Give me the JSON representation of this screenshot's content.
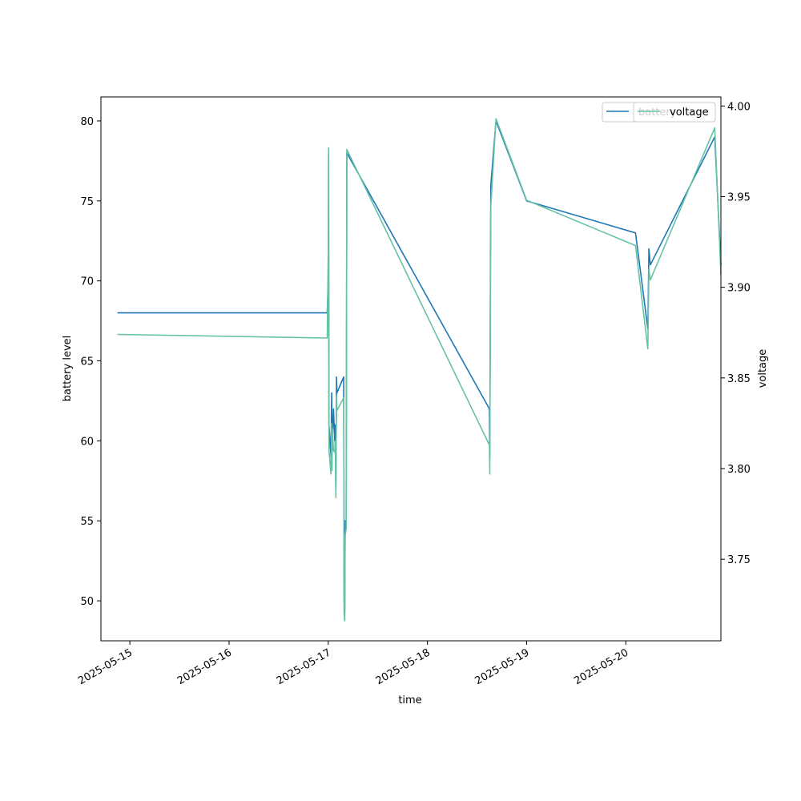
{
  "chart_data": {
    "type": "line",
    "xlabel": "time",
    "ylabel_left": "battery level",
    "ylabel_right": "voltage",
    "x_tick_labels": [
      "2025-05-15",
      "2025-05-16",
      "2025-05-17",
      "2025-05-18",
      "2025-05-19",
      "2025-05-20"
    ],
    "y_left_ticks": [
      50,
      55,
      60,
      65,
      70,
      75,
      80
    ],
    "y_left_lim": [
      47.5,
      81.5
    ],
    "y_right_ticks": [
      3.75,
      3.8,
      3.85,
      3.9,
      3.95,
      4.0
    ],
    "y_right_lim": [
      3.705,
      4.005
    ],
    "x_lim": [
      "2025-05-14T17:00",
      "2025-05-20T23:00"
    ],
    "legend": {
      "placement": "top-right",
      "entries": [
        "battery",
        "voltage"
      ]
    },
    "grid": false,
    "series": [
      {
        "name": "battery",
        "axis": "left",
        "color": "#1f77b4",
        "points": [
          [
            "2025-05-14T21:00",
            68
          ],
          [
            "2025-05-16T23:45",
            68
          ],
          [
            "2025-05-17T00:00",
            70
          ],
          [
            "2025-05-17T00:05",
            78
          ],
          [
            "2025-05-17T00:10",
            61
          ],
          [
            "2025-05-17T00:40",
            59
          ],
          [
            "2025-05-17T00:50",
            63
          ],
          [
            "2025-05-17T00:55",
            60
          ],
          [
            "2025-05-17T01:00",
            60
          ],
          [
            "2025-05-17T01:15",
            62
          ],
          [
            "2025-05-17T01:35",
            60
          ],
          [
            "2025-05-17T01:40",
            61
          ],
          [
            "2025-05-17T01:50",
            57
          ],
          [
            "2025-05-17T01:55",
            60
          ],
          [
            "2025-05-17T02:00",
            64
          ],
          [
            "2025-05-17T02:05",
            63
          ],
          [
            "2025-05-17T03:45",
            64
          ],
          [
            "2025-05-17T03:50",
            50
          ],
          [
            "2025-05-17T04:00",
            49.3
          ],
          [
            "2025-05-17T04:05",
            55
          ],
          [
            "2025-05-17T04:20",
            55
          ],
          [
            "2025-05-17T04:30",
            78
          ],
          [
            "2025-05-18T15:00",
            62
          ],
          [
            "2025-05-18T15:05",
            59
          ],
          [
            "2025-05-18T15:15",
            71
          ],
          [
            "2025-05-18T15:20",
            76
          ],
          [
            "2025-05-18T16:35",
            80
          ],
          [
            "2025-05-19T00:00",
            75
          ],
          [
            "2025-05-20T02:20",
            73
          ],
          [
            "2025-05-20T05:20",
            67
          ],
          [
            "2025-05-20T05:35",
            72
          ],
          [
            "2025-05-20T05:55",
            71
          ],
          [
            "2025-05-20T21:30",
            79
          ],
          [
            "2025-05-20T23:00",
            71
          ]
        ]
      },
      {
        "name": "voltage",
        "axis": "right",
        "color": "#66c2a5",
        "points": [
          [
            "2025-05-14T21:00",
            3.874
          ],
          [
            "2025-05-16T23:45",
            3.872
          ],
          [
            "2025-05-17T00:00",
            3.92
          ],
          [
            "2025-05-17T00:05",
            3.977
          ],
          [
            "2025-05-17T00:10",
            3.81
          ],
          [
            "2025-05-17T00:40",
            3.797
          ],
          [
            "2025-05-17T00:50",
            3.825
          ],
          [
            "2025-05-17T00:55",
            3.799
          ],
          [
            "2025-05-17T01:00",
            3.822
          ],
          [
            "2025-05-17T01:15",
            3.81
          ],
          [
            "2025-05-17T01:35",
            3.809
          ],
          [
            "2025-05-17T01:40",
            3.815
          ],
          [
            "2025-05-17T01:50",
            3.784
          ],
          [
            "2025-05-17T01:55",
            3.815
          ],
          [
            "2025-05-17T02:00",
            3.84
          ],
          [
            "2025-05-17T02:05",
            3.832
          ],
          [
            "2025-05-17T03:45",
            3.839
          ],
          [
            "2025-05-17T03:50",
            3.72
          ],
          [
            "2025-05-17T04:00",
            3.716
          ],
          [
            "2025-05-17T04:05",
            3.763
          ],
          [
            "2025-05-17T04:20",
            3.767
          ],
          [
            "2025-05-17T04:30",
            3.976
          ],
          [
            "2025-05-18T15:00",
            3.813
          ],
          [
            "2025-05-18T15:05",
            3.797
          ],
          [
            "2025-05-18T15:15",
            3.9
          ],
          [
            "2025-05-18T15:20",
            3.945
          ],
          [
            "2025-05-18T16:35",
            3.993
          ],
          [
            "2025-05-19T00:00",
            3.948
          ],
          [
            "2025-05-20T02:20",
            3.923
          ],
          [
            "2025-05-20T05:20",
            3.866
          ],
          [
            "2025-05-20T05:35",
            3.91
          ],
          [
            "2025-05-20T05:55",
            3.904
          ],
          [
            "2025-05-20T21:30",
            3.988
          ],
          [
            "2025-05-20T23:00",
            3.907
          ]
        ]
      }
    ]
  }
}
